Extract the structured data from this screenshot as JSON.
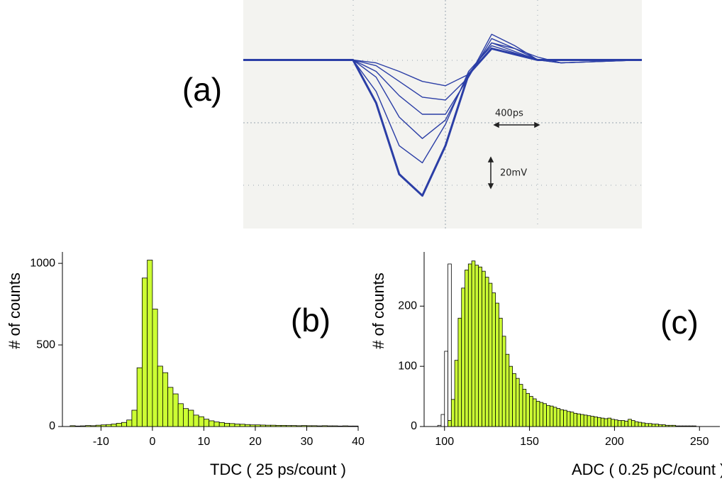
{
  "chart_data": [
    {
      "type": "line",
      "panel_label": "(a)",
      "annotations": [
        "400ps",
        "20mV"
      ],
      "color": "#2b3ea6",
      "xlim": [
        -1750,
        1700
      ],
      "ylim": [
        -117,
        42
      ],
      "x": [
        -1750,
        -800,
        -600,
        -400,
        -200,
        0,
        200,
        400,
        600,
        800,
        1000,
        1700
      ],
      "series": [
        {
          "values": [
            0,
            0,
            -30,
            -80,
            -95,
            -60,
            -10,
            8,
            4,
            0,
            0,
            0
          ]
        },
        {
          "values": [
            0,
            0,
            -22,
            -60,
            -72,
            -45,
            -8,
            10,
            5,
            0,
            0,
            0
          ]
        },
        {
          "values": [
            0,
            0,
            -12,
            -40,
            -55,
            -42,
            -10,
            12,
            6,
            0,
            0,
            0
          ]
        },
        {
          "values": [
            0,
            0,
            -8,
            -25,
            -38,
            -38,
            -12,
            15,
            8,
            0,
            -2,
            0
          ]
        },
        {
          "values": [
            0,
            0,
            -4,
            -15,
            -26,
            -28,
            -12,
            18,
            10,
            0,
            -2,
            0
          ]
        },
        {
          "values": [
            0,
            0,
            -2,
            -8,
            -15,
            -18,
            -10,
            12,
            8,
            2,
            -2,
            0
          ]
        }
      ]
    },
    {
      "type": "histogram",
      "panel_label": "(b)",
      "xlabel": "TDC   ( 25 ps/count )",
      "ylabel": "# of counts",
      "xlim": [
        -17.5,
        40
      ],
      "ylim": [
        0,
        1070
      ],
      "xticks": [
        -10,
        0,
        10,
        20,
        30,
        40
      ],
      "yticks": [
        0,
        500,
        1000
      ],
      "series": [
        {
          "color": "#ccff33",
          "bins": [
            -16,
            -15,
            -14,
            -13,
            -12,
            -11,
            -10,
            -9,
            -8,
            -7,
            -6,
            -5,
            -4,
            -3,
            -2,
            -1,
            0,
            1,
            2,
            3,
            4,
            5,
            6,
            7,
            8,
            9,
            10,
            11,
            12,
            13,
            14,
            15,
            16,
            17,
            18,
            19,
            20,
            21,
            22,
            23,
            24,
            25,
            26,
            27,
            28,
            29,
            30,
            31,
            32,
            33,
            34,
            35,
            36,
            37,
            38,
            39,
            40
          ],
          "values": [
            5,
            3,
            4,
            6,
            5,
            8,
            10,
            12,
            15,
            20,
            25,
            40,
            100,
            360,
            910,
            1020,
            720,
            370,
            330,
            240,
            200,
            140,
            110,
            100,
            70,
            60,
            45,
            35,
            28,
            24,
            20,
            18,
            15,
            14,
            12,
            10,
            10,
            9,
            8,
            8,
            7,
            7,
            6,
            6,
            5,
            6,
            5,
            5,
            4,
            5,
            4,
            4,
            3,
            4,
            3,
            3
          ]
        }
      ]
    },
    {
      "type": "histogram",
      "panel_label": "(c)",
      "xlabel": "ADC   ( 0.25 pC/count )",
      "ylabel": "# of counts",
      "xlim": [
        88,
        262
      ],
      "ylim": [
        0,
        290
      ],
      "xticks": [
        100,
        150,
        200,
        250
      ],
      "yticks": [
        0,
        100,
        200
      ],
      "series": [
        {
          "color": "#ffffff",
          "bins": [
            96,
            98,
            100,
            102,
            104,
            106,
            108
          ],
          "values": [
            2,
            20,
            125,
            270,
            15,
            2
          ]
        },
        {
          "color": "#ccff33",
          "bins": [
            102,
            104,
            106,
            108,
            110,
            112,
            114,
            116,
            118,
            120,
            122,
            124,
            126,
            128,
            130,
            132,
            134,
            136,
            138,
            140,
            142,
            144,
            146,
            148,
            150,
            152,
            154,
            156,
            158,
            160,
            162,
            164,
            166,
            168,
            170,
            172,
            174,
            176,
            178,
            180,
            182,
            184,
            186,
            188,
            190,
            192,
            194,
            196,
            198,
            200,
            202,
            204,
            206,
            208,
            210,
            212,
            214,
            216,
            218,
            220,
            222,
            224,
            226,
            228,
            230,
            232,
            234,
            236,
            238,
            240,
            242,
            244,
            246,
            248
          ],
          "values": [
            10,
            45,
            110,
            180,
            230,
            260,
            270,
            275,
            268,
            265,
            258,
            248,
            238,
            222,
            205,
            180,
            150,
            120,
            100,
            88,
            80,
            70,
            62,
            55,
            50,
            46,
            42,
            40,
            38,
            35,
            34,
            32,
            30,
            28,
            27,
            25,
            24,
            22,
            21,
            20,
            19,
            18,
            17,
            16,
            15,
            14,
            13,
            14,
            12,
            11,
            10,
            10,
            9,
            12,
            10,
            8,
            7,
            6,
            5,
            5,
            4,
            4,
            3,
            3,
            2,
            2,
            2,
            1,
            1,
            1,
            1,
            1,
            1
          ]
        }
      ]
    }
  ]
}
